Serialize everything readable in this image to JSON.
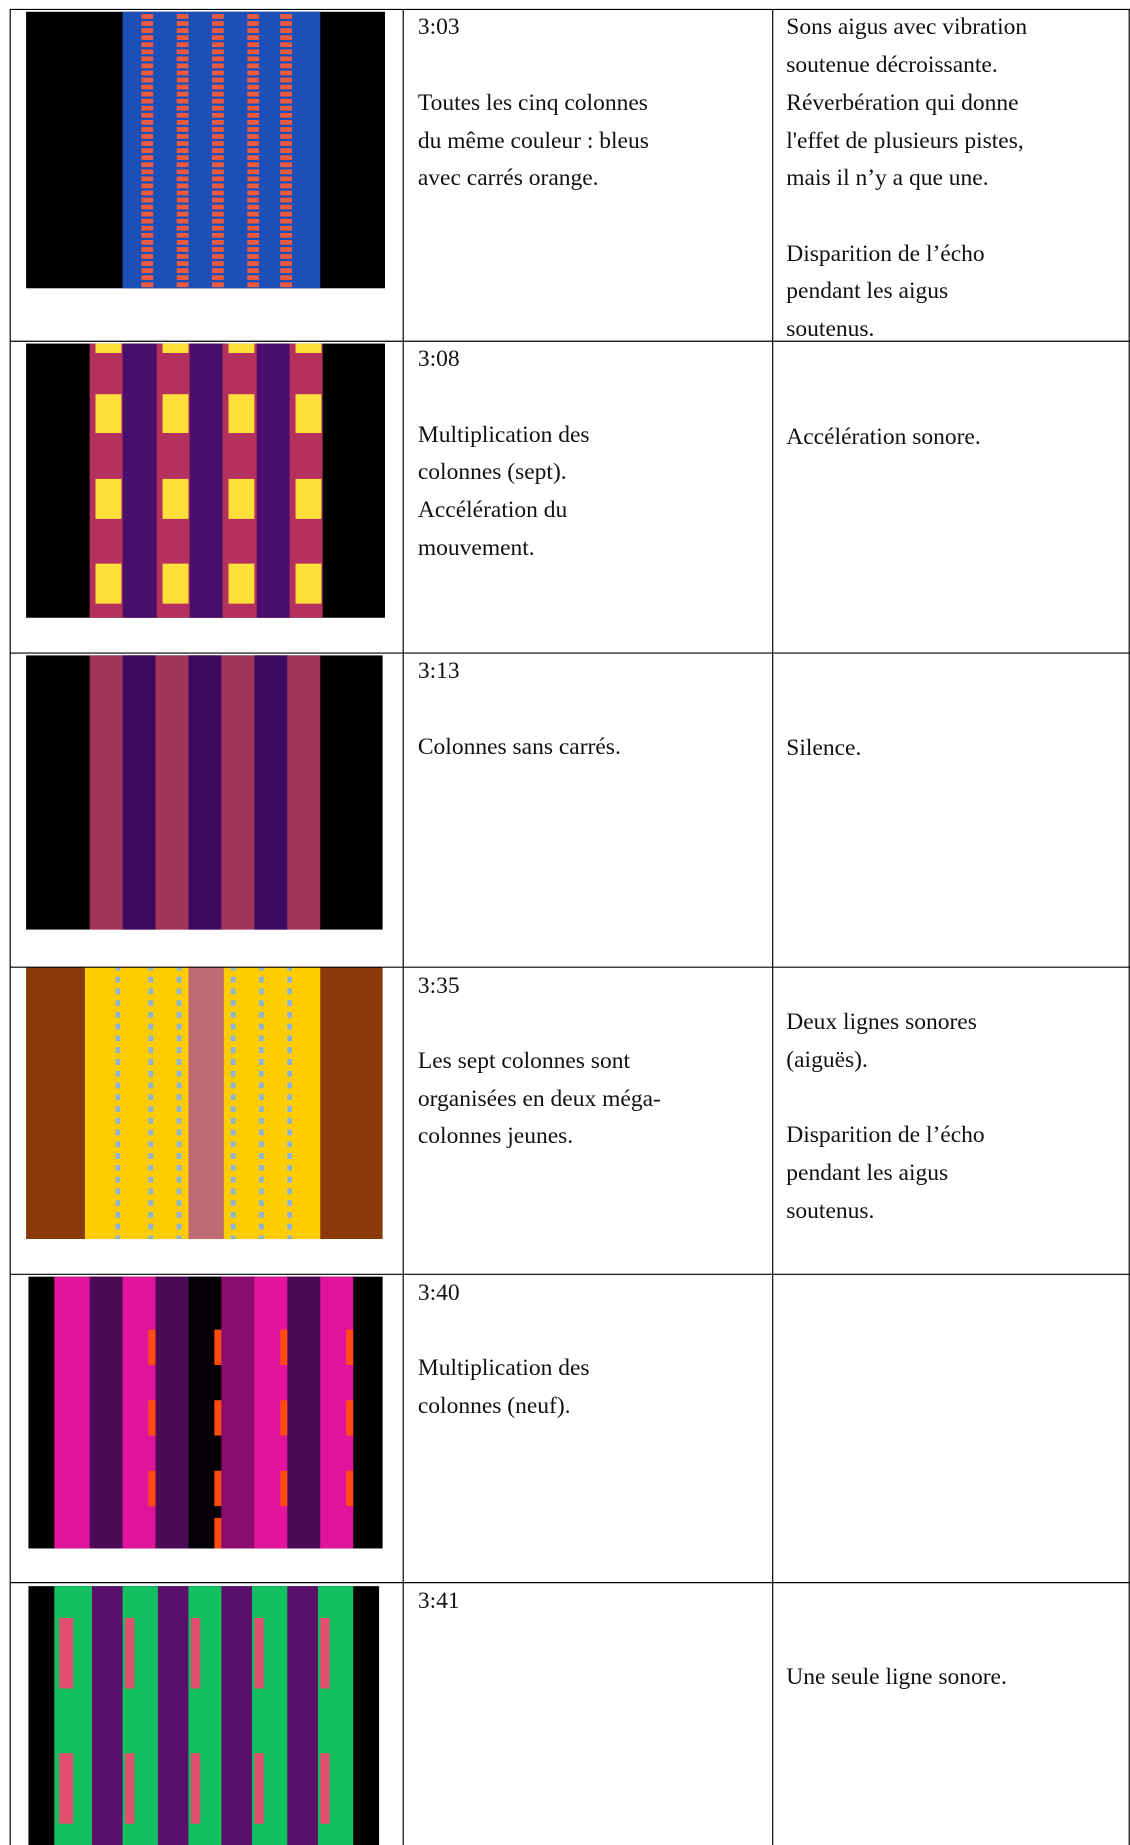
{
  "table": {
    "rows": [
      {
        "time": "3:03",
        "description": [
          [
            "Toutes les cinq colonnes",
            "du même couleur : bleus",
            "avec carrés orange."
          ]
        ],
        "sound": [
          [
            "Sons aigus avec vibration",
            "soutenue décroissante.",
            "Réverbération qui donne",
            "l'effet de plusieurs pistes,",
            "mais il n’y a que une."
          ],
          [
            "Disparition de l’écho",
            "pendant les aigus",
            "soutenus."
          ]
        ]
      },
      {
        "time": "3:08",
        "description": [
          [
            "Multiplication des",
            "colonnes (sept).",
            "Accélération du",
            "mouvement."
          ]
        ],
        "sound": [
          [
            "Accélération sonore."
          ]
        ]
      },
      {
        "time": "3:13",
        "description": [
          [
            "Colonnes sans carrés."
          ]
        ],
        "sound": [
          [
            "Silence."
          ]
        ]
      },
      {
        "time": "3:35",
        "description": [
          [
            "Les sept colonnes sont",
            "organisées en deux méga-",
            "colonnes jeunes."
          ]
        ],
        "sound": [
          [
            "Deux lignes sonores",
            "(aiguës)."
          ],
          [
            "Disparition de l’écho",
            "pendant les aigus",
            "soutenus."
          ]
        ]
      },
      {
        "time": "3:40",
        "description": [
          [
            "Multiplication des",
            "colonnes (neuf)."
          ]
        ],
        "sound": []
      },
      {
        "time": "3:41",
        "description": [],
        "sound": [
          [
            "Une seule ligne sonore."
          ]
        ]
      }
    ]
  }
}
